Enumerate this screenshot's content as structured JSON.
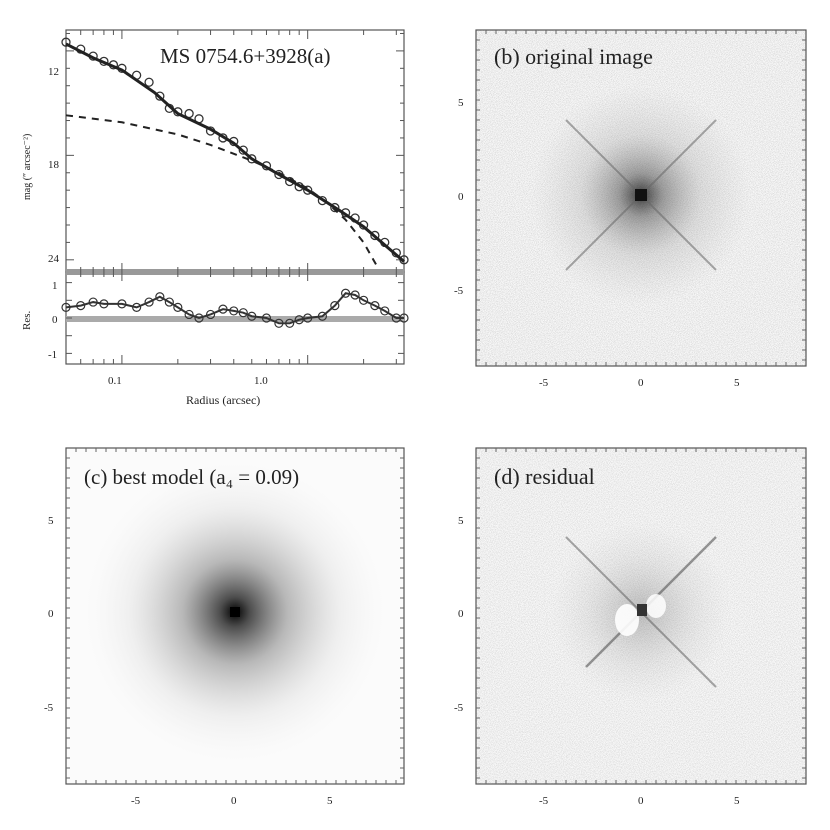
{
  "figure": {
    "panel_a": {
      "title": "MS 0754.6+3928(a)",
      "ylabel_top": "mag (″ arcsec⁻²)",
      "ylabel_bottom": "Res.",
      "xlabel": "Radius (arcsec)",
      "top_yticks": [
        "12",
        "18",
        "24"
      ],
      "bottom_yticks": [
        "1",
        "0",
        "-1"
      ],
      "xticks": [
        "0.1",
        "1.0"
      ]
    },
    "panel_b": {
      "label": "(b) original image",
      "yticks": [
        "5",
        "0",
        "-5"
      ],
      "xticks": [
        "-5",
        "0",
        "5"
      ]
    },
    "panel_c": {
      "label": "(c) best model (a₄ = 0.09)",
      "yticks": [
        "5",
        "0",
        "-5"
      ],
      "xticks": [
        "-5",
        "0",
        "5"
      ]
    },
    "panel_d": {
      "label": "(d) residual",
      "yticks": [
        "5",
        "0",
        "-5"
      ],
      "xticks": [
        "-5",
        "0",
        "5"
      ]
    }
  },
  "chart_data": [
    {
      "type": "scatter",
      "panel": "a-top",
      "title": "MS 0754.6+3928(a)",
      "xlabel": "",
      "ylabel": "mag (″ arcsec⁻²)",
      "x_scale": "log",
      "xlim": [
        0.05,
        3.3
      ],
      "ylim": [
        24.7,
        10.8
      ],
      "series": [
        {
          "style": "open-circles",
          "x": [
            0.05,
            0.06,
            0.07,
            0.08,
            0.09,
            0.1,
            0.12,
            0.14,
            0.16,
            0.18,
            0.2,
            0.23,
            0.26,
            0.3,
            0.35,
            0.4,
            0.45,
            0.5,
            0.6,
            0.7,
            0.8,
            0.9,
            1.0,
            1.2,
            1.4,
            1.6,
            1.8,
            2.0,
            2.3,
            2.6,
            3.0,
            3.3
          ],
          "y": [
            11.5,
            11.9,
            12.3,
            12.6,
            12.8,
            13.0,
            13.4,
            13.8,
            14.6,
            15.3,
            15.5,
            15.6,
            15.9,
            16.6,
            17.0,
            17.2,
            17.7,
            18.2,
            18.6,
            19.1,
            19.5,
            19.8,
            20.0,
            20.6,
            21.0,
            21.3,
            21.6,
            22.0,
            22.6,
            23.0,
            23.6,
            24.0
          ]
        },
        {
          "style": "solid",
          "x": [
            0.05,
            0.07,
            0.1,
            0.15,
            0.2,
            0.3,
            0.4,
            0.5,
            0.7,
            1.0,
            1.5,
            2.0,
            3.3
          ],
          "y": [
            11.6,
            12.4,
            13.1,
            14.4,
            15.6,
            16.5,
            17.3,
            18.2,
            19.1,
            20.0,
            21.2,
            22.1,
            24.1
          ]
        },
        {
          "style": "dashed",
          "x": [
            0.05,
            0.1,
            0.2,
            0.3,
            0.5,
            0.7,
            1.0,
            1.3,
            1.6,
            2.0,
            2.4
          ],
          "y": [
            15.7,
            16.1,
            16.8,
            17.4,
            18.3,
            19.0,
            19.9,
            20.8,
            21.7,
            23.0,
            24.5
          ]
        }
      ]
    },
    {
      "type": "scatter",
      "panel": "a-bottom",
      "xlabel": "Radius (arcsec)",
      "ylabel": "Res.",
      "x_scale": "log",
      "xlim": [
        0.05,
        3.3
      ],
      "ylim": [
        -1.3,
        1.3
      ],
      "series": [
        {
          "style": "open-circles-line",
          "x": [
            0.05,
            0.06,
            0.07,
            0.08,
            0.1,
            0.12,
            0.14,
            0.16,
            0.18,
            0.2,
            0.23,
            0.26,
            0.3,
            0.35,
            0.4,
            0.45,
            0.5,
            0.6,
            0.7,
            0.8,
            0.9,
            1.0,
            1.2,
            1.4,
            1.6,
            1.8,
            2.0,
            2.3,
            2.6,
            3.0,
            3.3
          ],
          "y": [
            0.3,
            0.35,
            0.45,
            0.4,
            0.4,
            0.3,
            0.45,
            0.6,
            0.45,
            0.3,
            0.1,
            0.0,
            0.1,
            0.25,
            0.2,
            0.15,
            0.05,
            0.0,
            -0.15,
            -0.15,
            -0.05,
            0.0,
            0.05,
            0.35,
            0.7,
            0.65,
            0.5,
            0.35,
            0.2,
            0.0,
            0.0
          ]
        }
      ]
    }
  ]
}
